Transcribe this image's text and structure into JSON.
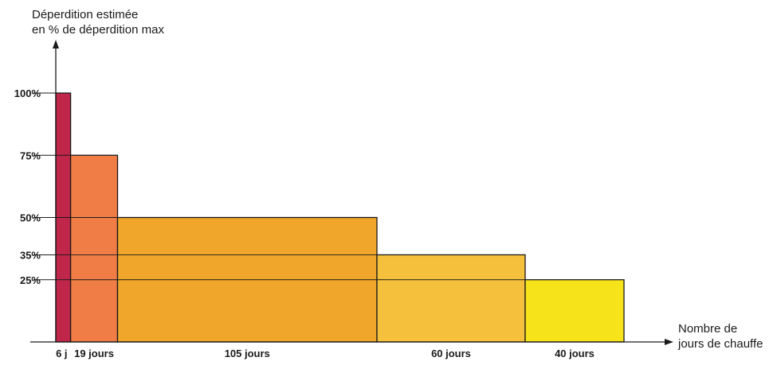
{
  "chart_data": {
    "type": "bar",
    "subtype": "variable-width histogram",
    "ylabel_lines": [
      "Déperdition estimée",
      "en % de déperdition max"
    ],
    "xlabel_lines": [
      "Nombre de",
      "jours de chauffe"
    ],
    "ylim": [
      0,
      100
    ],
    "xlim": [
      0,
      230
    ],
    "y_ticks": [
      {
        "value": 100,
        "label": "100%"
      },
      {
        "value": 75,
        "label": "75%"
      },
      {
        "value": 50,
        "label": "50%"
      },
      {
        "value": 35,
        "label": "35%"
      },
      {
        "value": 25,
        "label": "25%"
      }
    ],
    "bars": [
      {
        "days": 6,
        "label": "6 j",
        "value": 100,
        "color": "#c0254a"
      },
      {
        "days": 19,
        "label": "19 jours",
        "value": 75,
        "color": "#ef7d45"
      },
      {
        "days": 105,
        "label": "105 jours",
        "value": 50,
        "color": "#f0a62a"
      },
      {
        "days": 60,
        "label": "60 jours",
        "value": 35,
        "color": "#f5c13c"
      },
      {
        "days": 40,
        "label": "40 jours",
        "value": 25,
        "color": "#f7e31a"
      }
    ],
    "grid": false,
    "legend": "none"
  }
}
